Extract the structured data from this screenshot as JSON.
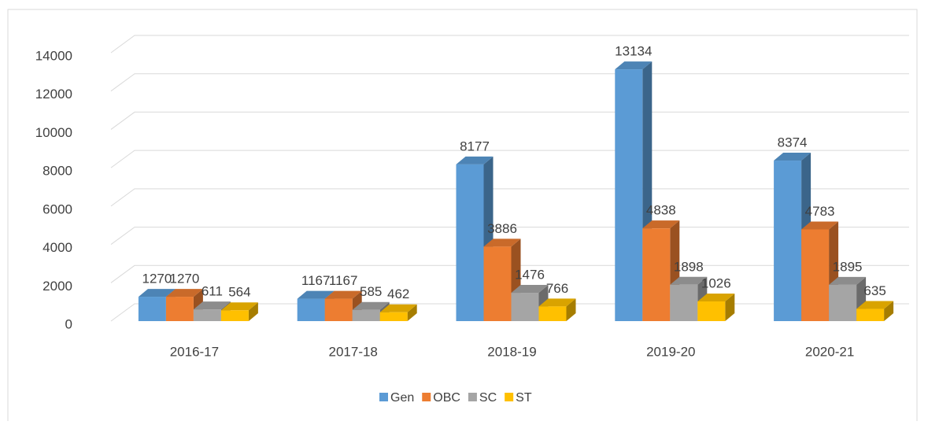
{
  "chart_data": {
    "type": "bar3d",
    "categories": [
      "2016-17",
      "2017-18",
      "2018-19",
      "2019-20",
      "2020-21"
    ],
    "series": [
      {
        "name": "Gen",
        "color": "#5b9bd5",
        "values": [
          1270,
          1167,
          8177,
          13134,
          8374
        ]
      },
      {
        "name": "OBC",
        "color": "#ed7d31",
        "values": [
          1270,
          1167,
          3886,
          4838,
          4783
        ]
      },
      {
        "name": "SC",
        "color": "#a5a5a5",
        "values": [
          611,
          585,
          1476,
          1898,
          1895
        ]
      },
      {
        "name": "ST",
        "color": "#ffc000",
        "values": [
          564,
          462,
          766,
          1026,
          635
        ]
      }
    ],
    "ylim": [
      0,
      14000
    ],
    "yticks": [
      0,
      2000,
      4000,
      6000,
      8000,
      10000,
      12000,
      14000
    ],
    "grid": true,
    "legend": "bottom"
  }
}
